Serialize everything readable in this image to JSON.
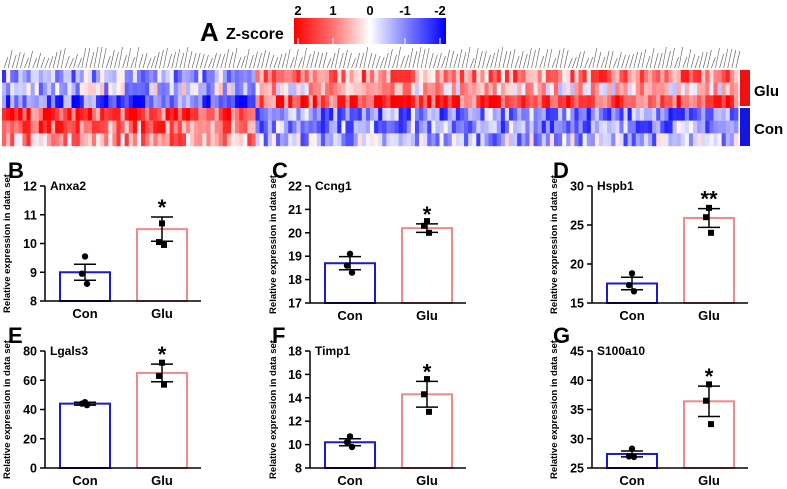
{
  "colors": {
    "con": "#1a1ad0",
    "glu": "#f08a8a",
    "hot": "#ff0000",
    "cold": "#0000ff",
    "neutral": "#f4f0f0",
    "con_bar": "#1515e0",
    "glu_bar": "#ee1111"
  },
  "heatmap": {
    "panel_label": "A",
    "zscore_label": "Z-score",
    "scale_ticks": [
      "2",
      "1",
      "0",
      "-1",
      "-2"
    ],
    "scale_values": [
      2,
      1,
      0,
      -1,
      -2
    ],
    "groups": [
      "Glu",
      "Con"
    ],
    "rows": 6,
    "cols": 180,
    "split_col": 62
  },
  "chart_data": [
    {
      "type": "bar",
      "panel": "B",
      "title": "Anxa2",
      "categories": [
        "Con",
        "Glu"
      ],
      "values": [
        9.0,
        10.5
      ],
      "sem": [
        0.28,
        0.42
      ],
      "points": [
        [
          9.55,
          8.95,
          8.6
        ],
        [
          10.7,
          10.05,
          9.95
        ]
      ],
      "ylim": [
        8,
        12
      ],
      "yticks": [
        "8",
        "9",
        "10",
        "11",
        "12"
      ],
      "ylabel": "Relative  expression in data set",
      "significance": "*"
    },
    {
      "type": "bar",
      "panel": "C",
      "title": "Ccng1",
      "categories": [
        "Con",
        "Glu"
      ],
      "values": [
        18.7,
        20.2
      ],
      "sem": [
        0.28,
        0.18
      ],
      "points": [
        [
          19.1,
          18.6,
          18.3
        ],
        [
          20.5,
          20.3,
          20.0
        ]
      ],
      "ylim": [
        17,
        22
      ],
      "yticks": [
        "17",
        "18",
        "19",
        "20",
        "21",
        "22"
      ],
      "ylabel": "Relative  expression in data set",
      "significance": "*"
    },
    {
      "type": "bar",
      "panel": "D",
      "title": "Hspb1",
      "categories": [
        "Con",
        "Glu"
      ],
      "values": [
        17.5,
        25.9
      ],
      "sem": [
        0.8,
        1.2
      ],
      "points": [
        [
          18.8,
          17.3,
          16.5
        ],
        [
          27.2,
          26.0,
          24.0
        ]
      ],
      "ylim": [
        15,
        30
      ],
      "yticks": [
        "15",
        "20",
        "25",
        "30"
      ],
      "ylabel": "Relative  expression in data set",
      "significance": "**"
    },
    {
      "type": "bar",
      "panel": "E",
      "title": "Lgals3",
      "categories": [
        "Con",
        "Glu"
      ],
      "values": [
        44,
        65
      ],
      "sem": [
        1.0,
        6.0
      ],
      "points": [
        [
          45,
          44,
          43
        ],
        [
          72,
          63,
          57
        ]
      ],
      "ylim": [
        0,
        80
      ],
      "yticks": [
        "0",
        "20",
        "40",
        "60",
        "80"
      ],
      "ylabel": "Relative  expression in data set",
      "significance": "*"
    },
    {
      "type": "bar",
      "panel": "F",
      "title": "Timp1",
      "categories": [
        "Con",
        "Glu"
      ],
      "values": [
        10.2,
        14.3
      ],
      "sem": [
        0.3,
        1.1
      ],
      "points": [
        [
          10.7,
          10.2,
          9.8
        ],
        [
          15.6,
          14.3,
          12.8
        ]
      ],
      "ylim": [
        8,
        18
      ],
      "yticks": [
        "8",
        "10",
        "12",
        "14",
        "16",
        "18"
      ],
      "ylabel": "Relative  expression in data set",
      "significance": "*"
    },
    {
      "type": "bar",
      "panel": "G",
      "title": "S100a10",
      "categories": [
        "Con",
        "Glu"
      ],
      "values": [
        27.4,
        36.4
      ],
      "sem": [
        0.5,
        2.6
      ],
      "points": [
        [
          28.3,
          27.0,
          26.9
        ],
        [
          39.3,
          36.5,
          32.5
        ]
      ],
      "ylim": [
        25,
        45
      ],
      "yticks": [
        "25",
        "30",
        "35",
        "40",
        "45"
      ],
      "ylabel": "Relative  expression in data set",
      "significance": "*"
    }
  ]
}
